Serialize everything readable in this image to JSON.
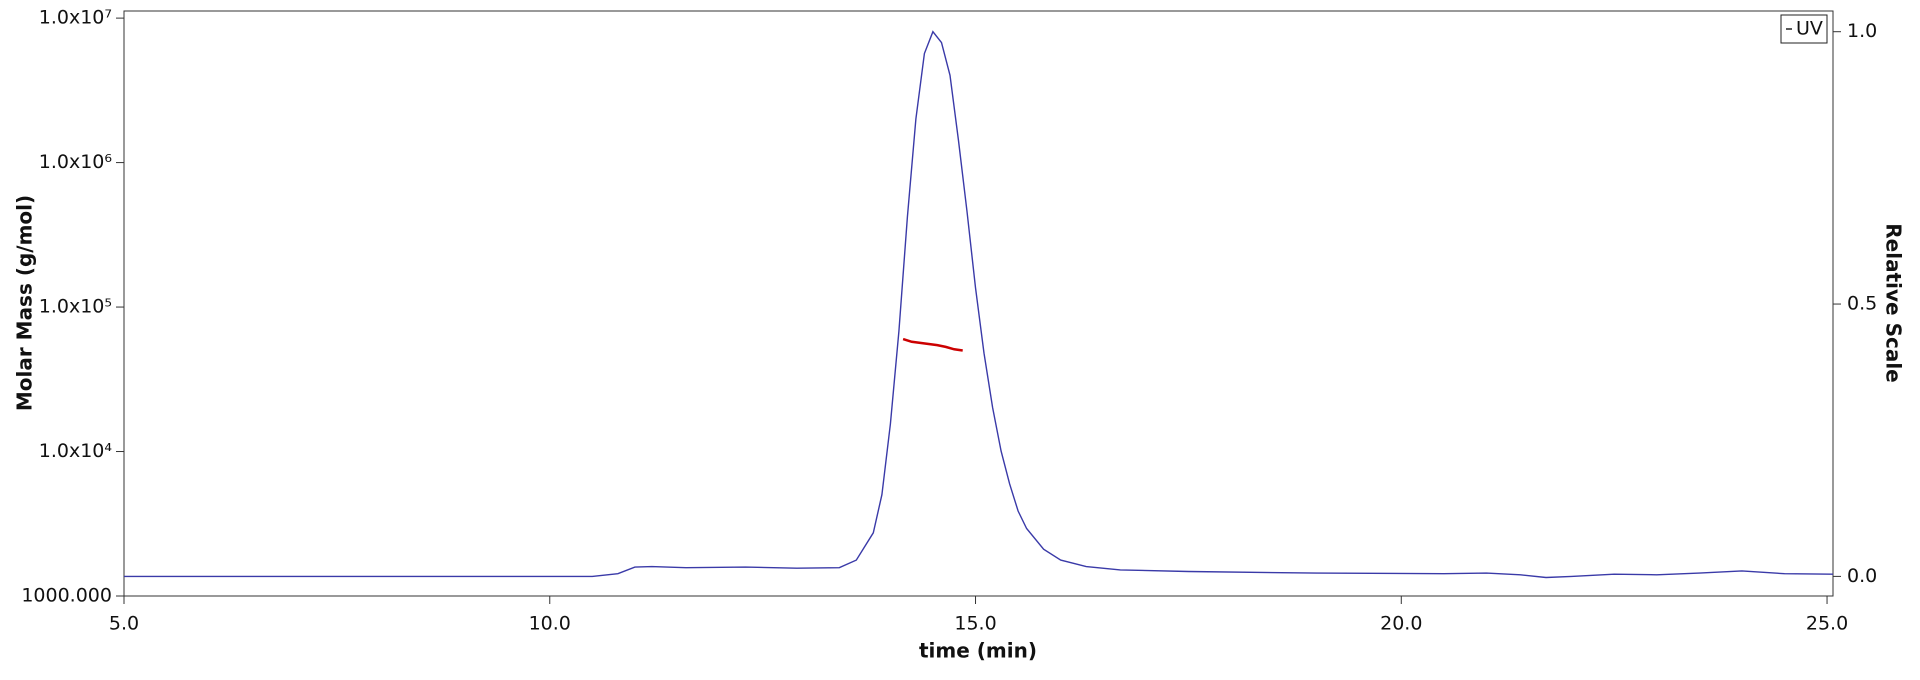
{
  "chart_data": {
    "type": "line",
    "xlabel": "time (min)",
    "ylabel": "Molar Mass (g/mol)",
    "y2label": "Relative Scale",
    "xlim": [
      5,
      25.07
    ],
    "xticks": [
      {
        "value": 5,
        "label": "5.0"
      },
      {
        "value": 10,
        "label": "10.0"
      },
      {
        "value": 15,
        "label": "15.0"
      },
      {
        "value": 20,
        "label": "20.0"
      },
      {
        "value": 25,
        "label": "25.0"
      }
    ],
    "ylim": [
      1000,
      11200000
    ],
    "ylog": true,
    "yticks": [
      {
        "value": 1000,
        "label": "1000.000"
      },
      {
        "value": 10000,
        "label": "1.0x10⁴"
      },
      {
        "value": 100000,
        "label": "1.0x10⁵"
      },
      {
        "value": 1000000,
        "label": "1.0x10⁶"
      },
      {
        "value": 10000000,
        "label": "1.0x10⁷"
      }
    ],
    "y2lim": [
      -0.036,
      1.038
    ],
    "y2ticks": [
      {
        "value": 0,
        "label": "0.0"
      },
      {
        "value": 0.5,
        "label": "0.5"
      },
      {
        "value": 1,
        "label": "1.0"
      }
    ],
    "legend": "upper right",
    "series": [
      {
        "name": "UV",
        "color": "#3a3aa8",
        "axis": "y2",
        "x": [
          5,
          8,
          10.5,
          10.8,
          11,
          11.2,
          11.6,
          12.3,
          12.9,
          13.4,
          13.6,
          13.8,
          13.9,
          14.0,
          14.1,
          14.2,
          14.3,
          14.4,
          14.5,
          14.6,
          14.7,
          14.8,
          14.9,
          15.0,
          15.1,
          15.2,
          15.3,
          15.4,
          15.5,
          15.6,
          15.8,
          16.0,
          16.3,
          16.7,
          17.5,
          19,
          20.5,
          21.0,
          21.4,
          21.7,
          22.0,
          22.5,
          23.0,
          23.5,
          24.0,
          24.5,
          25.07
        ],
        "values": [
          0.0,
          0.0,
          0.0,
          0.005,
          0.017,
          0.018,
          0.016,
          0.017,
          0.015,
          0.016,
          0.03,
          0.08,
          0.15,
          0.28,
          0.45,
          0.66,
          0.84,
          0.96,
          1.0,
          0.98,
          0.92,
          0.8,
          0.67,
          0.53,
          0.41,
          0.31,
          0.23,
          0.17,
          0.12,
          0.088,
          0.05,
          0.03,
          0.018,
          0.012,
          0.009,
          0.006,
          0.005,
          0.006,
          0.003,
          -0.002,
          0.0,
          0.004,
          0.003,
          0.006,
          0.01,
          0.005,
          0.004
        ]
      },
      {
        "color": "#cc0000",
        "axis": "y",
        "x": [
          14.15,
          14.25,
          14.35,
          14.45,
          14.55,
          14.65,
          14.75,
          14.85
        ],
        "values": [
          60000,
          57500,
          56500,
          55500,
          54500,
          53000,
          51000,
          50000
        ]
      }
    ]
  }
}
